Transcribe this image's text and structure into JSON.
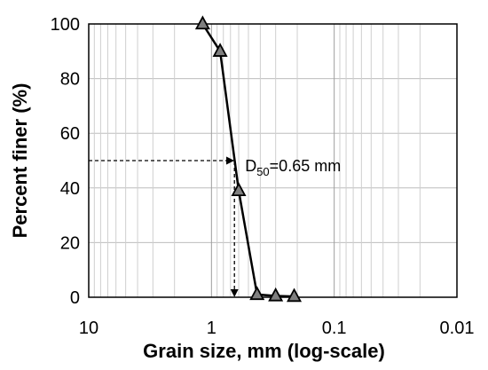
{
  "chart_data": {
    "type": "scatter",
    "x_scale": "log",
    "x_reversed": true,
    "xlabel": "Grain size, mm (log-scale)",
    "ylabel": "Percent finer (%)",
    "xlim": [
      10,
      0.01
    ],
    "ylim": [
      0,
      100
    ],
    "x_ticks": [
      10,
      1,
      0.1,
      0.01
    ],
    "x_tick_labels": [
      "10",
      "1",
      "0.1",
      "0.01"
    ],
    "y_ticks": [
      0,
      20,
      40,
      60,
      80,
      100
    ],
    "y_tick_labels": [
      "0",
      "20",
      "40",
      "60",
      "80",
      "100"
    ],
    "grid": true,
    "series": [
      {
        "marker": "triangle",
        "line_color": "#000000",
        "marker_color": "#7f7f7f",
        "points": [
          {
            "x": 1.18,
            "y": 100
          },
          {
            "x": 0.85,
            "y": 90
          },
          {
            "x": 0.6,
            "y": 39
          },
          {
            "x": 0.425,
            "y": 1
          },
          {
            "x": 0.3,
            "y": 0.5
          },
          {
            "x": 0.212,
            "y": 0.3
          }
        ]
      }
    ],
    "annotation": {
      "d_symbol": "D",
      "subscript": "50",
      "value_text": "=0.65 mm",
      "x": 0.65,
      "y": 50
    }
  }
}
